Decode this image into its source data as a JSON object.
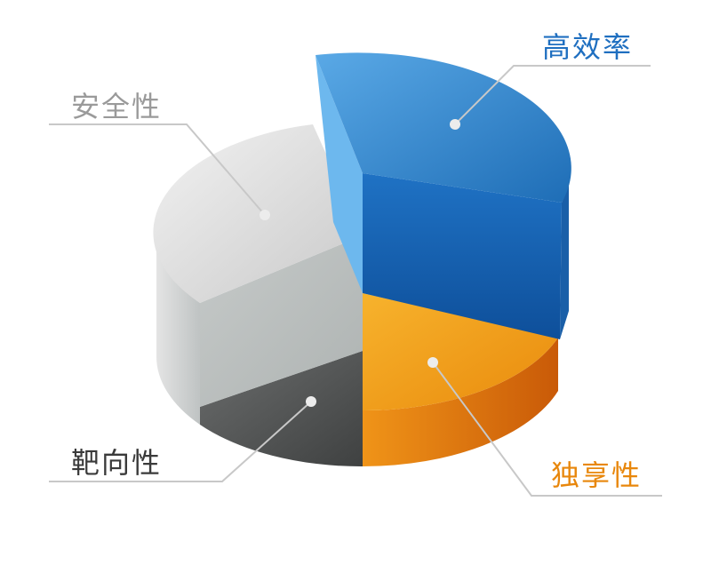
{
  "labels": {
    "efficiency": "高效率",
    "safety": "安全性",
    "targeting": "靶向性",
    "exclusive": "独享性"
  },
  "colors": {
    "efficiency": "#1f6fc0",
    "safety": "#9a9a9a",
    "targeting": "#3a3a3a",
    "exclusive": "#e8870c",
    "leader_line": "#c8c8c8"
  }
}
